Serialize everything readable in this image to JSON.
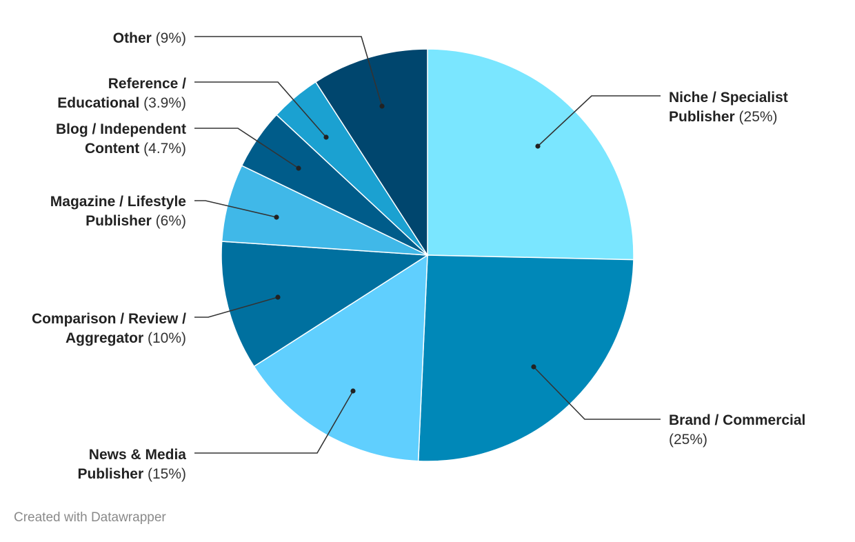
{
  "chart_data": {
    "type": "pie",
    "slices": [
      {
        "name_lines": [
          "Niche / Specialist",
          "Publisher"
        ],
        "pct_text": "(25%)",
        "value": 25,
        "color": "#7ae6ff",
        "pct_inline": true
      },
      {
        "name_lines": [
          "Brand / Commercial"
        ],
        "pct_text": "(25%)",
        "value": 25,
        "color": "#0088b8",
        "pct_inline": false
      },
      {
        "name_lines": [
          "News & Media",
          "Publisher"
        ],
        "pct_text": "(15%)",
        "value": 15,
        "color": "#60cffe",
        "pct_inline": true
      },
      {
        "name_lines": [
          "Comparison / Review /",
          "Aggregator"
        ],
        "pct_text": "(10%)",
        "value": 10,
        "color": "#00709f",
        "pct_inline": true
      },
      {
        "name_lines": [
          "Magazine / Lifestyle",
          "Publisher"
        ],
        "pct_text": "(6%)",
        "value": 6,
        "color": "#40b8e8",
        "pct_inline": true
      },
      {
        "name_lines": [
          "Blog / Independent",
          "Content"
        ],
        "pct_text": "(4.7%)",
        "value": 4.7,
        "color": "#005c8a",
        "pct_inline": true
      },
      {
        "name_lines": [
          "Reference /",
          "Educational"
        ],
        "pct_text": "(3.9%)",
        "value": 3.9,
        "color": "#1ba1d1",
        "pct_inline": true
      },
      {
        "name_lines": [
          "Other"
        ],
        "pct_text": "(9%)",
        "value": 9,
        "color": "#00466e",
        "pct_inline": true
      }
    ]
  },
  "footer": {
    "credit": "Created with Datawrapper"
  }
}
